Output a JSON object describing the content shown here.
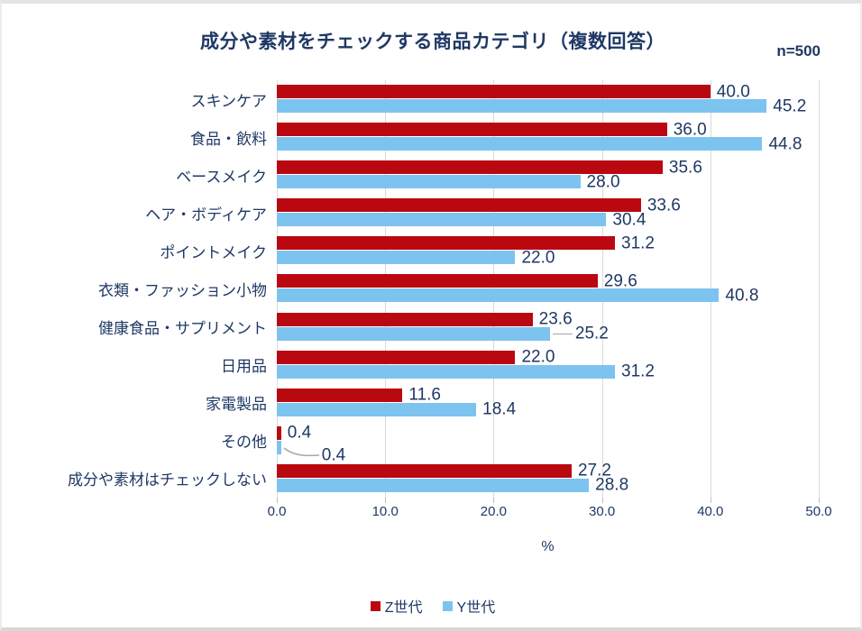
{
  "page": {
    "title": "成分や素材をチェックする商品カテゴリ（複数回答）",
    "sample_size_label": "n=500"
  },
  "colors": {
    "text_navy": "#1f3864",
    "gridline": "#d9d9d9",
    "leader": "#a6a6a6",
    "gen_z_red": "#ba0811",
    "gen_y_blue": "#7dc3f0"
  },
  "chart_data": {
    "type": "bar",
    "orientation": "horizontal",
    "title": "成分や素材をチェックする商品カテゴリ（複数回答）",
    "subtitle": "n=500",
    "categories": [
      "スキンケア",
      "食品・飲料",
      "ベースメイク",
      "ヘア・ボディケア",
      "ポイントメイク",
      "衣類・ファッション小物",
      "健康食品・サプリメント",
      "日用品",
      "家電製品",
      "その他",
      "成分や素材はチェックしない"
    ],
    "series": [
      {
        "name": "Z世代",
        "color": "#ba0811",
        "values": [
          40.0,
          36.0,
          35.6,
          33.6,
          31.2,
          29.6,
          23.6,
          22.0,
          11.6,
          0.4,
          27.2
        ]
      },
      {
        "name": "Y世代",
        "color": "#7dc3f0",
        "values": [
          45.2,
          44.8,
          28.0,
          30.4,
          22.0,
          40.8,
          25.2,
          31.2,
          18.4,
          0.4,
          28.8
        ]
      }
    ],
    "xlabel": "%",
    "xlim": [
      0,
      50
    ],
    "xticks": [
      "0.0",
      "10.0",
      "20.0",
      "30.0",
      "40.0",
      "50.0"
    ],
    "grid": true,
    "legend_position": "bottom",
    "callouts": [
      {
        "row": 6,
        "series": 1,
        "type": "line"
      },
      {
        "row": 9,
        "series": 1,
        "type": "curve"
      }
    ]
  }
}
